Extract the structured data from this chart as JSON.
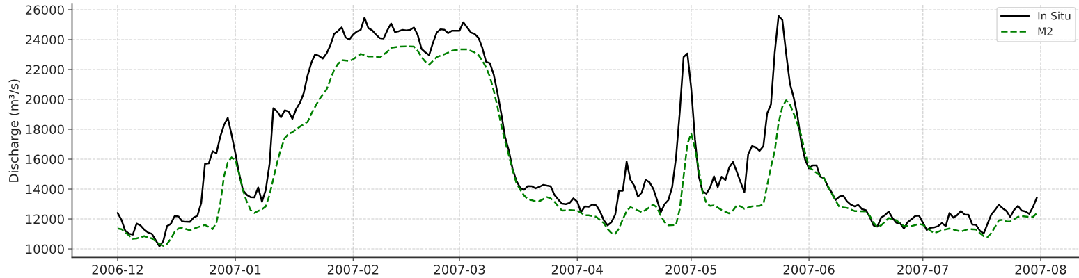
{
  "chart_data": {
    "type": "line",
    "ylabel": "Discharge (m³/s)",
    "xlim": [
      "2006-11-19",
      "2007-08-11"
    ],
    "xticks": [
      {
        "value": "2006-12-01",
        "label": "2006-12"
      },
      {
        "value": "2007-01-01",
        "label": "2007-01"
      },
      {
        "value": "2007-02-01",
        "label": "2007-02"
      },
      {
        "value": "2007-03-01",
        "label": "2007-03"
      },
      {
        "value": "2007-04-01",
        "label": "2007-04"
      },
      {
        "value": "2007-05-01",
        "label": "2007-05"
      },
      {
        "value": "2007-06-01",
        "label": "2007-06"
      },
      {
        "value": "2007-07-01",
        "label": "2007-07"
      },
      {
        "value": "2007-08-01",
        "label": "2007-08"
      }
    ],
    "ylim": [
      9430,
      26370
    ],
    "yticks": [
      10000,
      12000,
      14000,
      16000,
      18000,
      20000,
      22000,
      24000,
      26000
    ],
    "grid": true,
    "legend": "top right",
    "series": [
      {
        "name": "In Situ",
        "color": "#000000",
        "line_style": "solid",
        "x": [
          "2006-12-01",
          "2006-12-02",
          "2006-12-03",
          "2006-12-04",
          "2006-12-05",
          "2006-12-06",
          "2006-12-07",
          "2006-12-08",
          "2006-12-09",
          "2006-12-10",
          "2006-12-11",
          "2006-12-12",
          "2006-12-13",
          "2006-12-14",
          "2006-12-15",
          "2006-12-16",
          "2006-12-17",
          "2006-12-18",
          "2006-12-19",
          "2006-12-20",
          "2006-12-21",
          "2006-12-22",
          "2006-12-23",
          "2006-12-24",
          "2006-12-25",
          "2006-12-26",
          "2006-12-27",
          "2006-12-28",
          "2006-12-29",
          "2006-12-30",
          "2006-12-31",
          "2007-01-01",
          "2007-01-02",
          "2007-01-03",
          "2007-01-04",
          "2007-01-05",
          "2007-01-06",
          "2007-01-07",
          "2007-01-08",
          "2007-01-09",
          "2007-01-10",
          "2007-01-11",
          "2007-01-12",
          "2007-01-13",
          "2007-01-14",
          "2007-01-15",
          "2007-01-16",
          "2007-01-17",
          "2007-01-18",
          "2007-01-19",
          "2007-01-20",
          "2007-01-21",
          "2007-01-22",
          "2007-01-23",
          "2007-01-24",
          "2007-01-25",
          "2007-01-26",
          "2007-01-27",
          "2007-01-28",
          "2007-01-29",
          "2007-01-30",
          "2007-01-31",
          "2007-02-01",
          "2007-02-02",
          "2007-02-03",
          "2007-02-04",
          "2007-02-05",
          "2007-02-06",
          "2007-02-07",
          "2007-02-08",
          "2007-02-09",
          "2007-02-10",
          "2007-02-11",
          "2007-02-12",
          "2007-02-13",
          "2007-02-14",
          "2007-02-15",
          "2007-02-16",
          "2007-02-17",
          "2007-02-18",
          "2007-02-19",
          "2007-02-20",
          "2007-02-21",
          "2007-02-22",
          "2007-02-23",
          "2007-02-24",
          "2007-02-25",
          "2007-02-26",
          "2007-02-27",
          "2007-02-28",
          "2007-03-01",
          "2007-03-02",
          "2007-03-03",
          "2007-03-04",
          "2007-03-05",
          "2007-03-06",
          "2007-03-07",
          "2007-03-08",
          "2007-03-09",
          "2007-03-10",
          "2007-03-11",
          "2007-03-12",
          "2007-03-13",
          "2007-03-14",
          "2007-03-15",
          "2007-03-16",
          "2007-03-17",
          "2007-03-18",
          "2007-03-19",
          "2007-03-20",
          "2007-03-21",
          "2007-03-22",
          "2007-03-23",
          "2007-03-24",
          "2007-03-25",
          "2007-03-26",
          "2007-03-27",
          "2007-03-28",
          "2007-03-29",
          "2007-03-30",
          "2007-03-31",
          "2007-04-01",
          "2007-04-02",
          "2007-04-03",
          "2007-04-04",
          "2007-04-05",
          "2007-04-06",
          "2007-04-07",
          "2007-04-08",
          "2007-04-09",
          "2007-04-10",
          "2007-04-11",
          "2007-04-12",
          "2007-04-13",
          "2007-04-14",
          "2007-04-15",
          "2007-04-16",
          "2007-04-17",
          "2007-04-18",
          "2007-04-19",
          "2007-04-20",
          "2007-04-21",
          "2007-04-22",
          "2007-04-23",
          "2007-04-24",
          "2007-04-25",
          "2007-04-26",
          "2007-04-27",
          "2007-04-28",
          "2007-04-29",
          "2007-04-30",
          "2007-05-01",
          "2007-05-02",
          "2007-05-03",
          "2007-05-04",
          "2007-05-05",
          "2007-05-06",
          "2007-05-07",
          "2007-05-08",
          "2007-05-09",
          "2007-05-10",
          "2007-05-11",
          "2007-05-12",
          "2007-05-13",
          "2007-05-14",
          "2007-05-15",
          "2007-05-16",
          "2007-05-17",
          "2007-05-18",
          "2007-05-19",
          "2007-05-20",
          "2007-05-21",
          "2007-05-22",
          "2007-05-23",
          "2007-05-24",
          "2007-05-25",
          "2007-05-26",
          "2007-05-27",
          "2007-05-28",
          "2007-05-29",
          "2007-05-30",
          "2007-05-31",
          "2007-06-01",
          "2007-06-02",
          "2007-06-03",
          "2007-06-04",
          "2007-06-05",
          "2007-06-06",
          "2007-06-07",
          "2007-06-08",
          "2007-06-09",
          "2007-06-10",
          "2007-06-11",
          "2007-06-12",
          "2007-06-13",
          "2007-06-14",
          "2007-06-15",
          "2007-06-16",
          "2007-06-17",
          "2007-06-18",
          "2007-06-19",
          "2007-06-20",
          "2007-06-21",
          "2007-06-22",
          "2007-06-23",
          "2007-06-24",
          "2007-06-25",
          "2007-06-26",
          "2007-06-27",
          "2007-06-28",
          "2007-06-29",
          "2007-06-30",
          "2007-07-01",
          "2007-07-02",
          "2007-07-03",
          "2007-07-04",
          "2007-07-05",
          "2007-07-06",
          "2007-07-07",
          "2007-07-08",
          "2007-07-09",
          "2007-07-10",
          "2007-07-11",
          "2007-07-12",
          "2007-07-13",
          "2007-07-14",
          "2007-07-15",
          "2007-07-16",
          "2007-07-17",
          "2007-07-18",
          "2007-07-19",
          "2007-07-20",
          "2007-07-21",
          "2007-07-22",
          "2007-07-23",
          "2007-07-24",
          "2007-07-25",
          "2007-07-26",
          "2007-07-27",
          "2007-07-28",
          "2007-07-29",
          "2007-07-30",
          "2007-07-31"
        ],
        "values": [
          12400,
          11940,
          11210,
          11010,
          10950,
          11690,
          11570,
          11290,
          11090,
          11010,
          10590,
          10170,
          10510,
          11520,
          11670,
          12190,
          12170,
          11840,
          11810,
          11800,
          12090,
          12220,
          13070,
          15690,
          15720,
          16530,
          16400,
          17490,
          18290,
          18760,
          17640,
          16400,
          15010,
          13920,
          13610,
          13460,
          13440,
          14110,
          13150,
          13950,
          15700,
          19410,
          19190,
          18800,
          19270,
          19190,
          18700,
          19350,
          19770,
          20430,
          21590,
          22450,
          23020,
          22910,
          22730,
          23070,
          23610,
          24380,
          24570,
          24820,
          24150,
          24000,
          24340,
          24540,
          24650,
          25470,
          24770,
          24620,
          24340,
          24100,
          24070,
          24620,
          25080,
          24510,
          24560,
          24650,
          24620,
          24650,
          24810,
          24310,
          23380,
          23150,
          22960,
          23770,
          24470,
          24690,
          24660,
          24430,
          24590,
          24590,
          24590,
          25160,
          24810,
          24470,
          24380,
          24120,
          23450,
          22520,
          22420,
          21670,
          20430,
          19040,
          17490,
          16560,
          15320,
          14540,
          14080,
          13950,
          14200,
          14190,
          14050,
          14140,
          14280,
          14230,
          14190,
          13610,
          13300,
          13020,
          12990,
          13070,
          13380,
          13150,
          12450,
          12840,
          12810,
          12960,
          12910,
          12500,
          11910,
          11570,
          11780,
          12290,
          13890,
          13890,
          15840,
          14620,
          14230,
          13490,
          13770,
          14620,
          14460,
          14030,
          13270,
          12450,
          12990,
          13270,
          14150,
          16090,
          19190,
          22830,
          23070,
          20740,
          17330,
          14850,
          13840,
          13690,
          14110,
          14850,
          14140,
          14820,
          14600,
          15440,
          15810,
          15160,
          14460,
          13800,
          16330,
          16870,
          16790,
          16560,
          16870,
          19070,
          19660,
          23140,
          25590,
          25310,
          23070,
          21050,
          20120,
          18880,
          17100,
          15970,
          15390,
          15580,
          15580,
          14820,
          14730,
          14150,
          13770,
          13270,
          13490,
          13570,
          13180,
          12960,
          12840,
          12930,
          12650,
          12590,
          12140,
          11570,
          11490,
          12090,
          12250,
          12500,
          12060,
          11750,
          11710,
          11360,
          11780,
          11980,
          12200,
          12220,
          11750,
          11260,
          11410,
          11440,
          11520,
          11720,
          11520,
          12400,
          12090,
          12250,
          12530,
          12290,
          12280,
          11630,
          11600,
          11210,
          11020,
          11670,
          12290,
          12600,
          12950,
          12710,
          12530,
          12140,
          12600,
          12870,
          12560,
          12500,
          12340,
          12810,
          13430
        ]
      },
      {
        "name": "M2",
        "color": "#008000",
        "line_style": "dashed",
        "x": [
          "2006-12-01",
          "2006-12-02",
          "2006-12-04",
          "2006-12-05",
          "2006-12-06",
          "2006-12-08",
          "2006-12-10",
          "2006-12-12",
          "2006-12-13",
          "2006-12-14",
          "2006-12-15",
          "2006-12-16",
          "2006-12-17",
          "2006-12-18",
          "2006-12-20",
          "2006-12-22",
          "2006-12-24",
          "2006-12-26",
          "2006-12-27",
          "2006-12-28",
          "2006-12-29",
          "2006-12-30",
          "2006-12-31",
          "2007-01-01",
          "2007-01-02",
          "2007-01-03",
          "2007-01-04",
          "2007-01-05",
          "2007-01-06",
          "2007-01-07",
          "2007-01-08",
          "2007-01-09",
          "2007-01-10",
          "2007-01-11",
          "2007-01-12",
          "2007-01-13",
          "2007-01-14",
          "2007-01-15",
          "2007-01-16",
          "2007-01-18",
          "2007-01-20",
          "2007-01-21",
          "2007-01-23",
          "2007-01-25",
          "2007-01-27",
          "2007-01-28",
          "2007-01-29",
          "2007-01-31",
          "2007-02-01",
          "2007-02-03",
          "2007-02-05",
          "2007-02-07",
          "2007-02-08",
          "2007-02-10",
          "2007-02-11",
          "2007-02-13",
          "2007-02-15",
          "2007-02-17",
          "2007-02-18",
          "2007-02-19",
          "2007-02-20",
          "2007-02-21",
          "2007-02-22",
          "2007-02-23",
          "2007-02-25",
          "2007-02-27",
          "2007-03-01",
          "2007-03-03",
          "2007-03-05",
          "2007-03-06",
          "2007-03-07",
          "2007-03-08",
          "2007-03-09",
          "2007-03-10",
          "2007-03-11",
          "2007-03-12",
          "2007-03-13",
          "2007-03-14",
          "2007-03-15",
          "2007-03-16",
          "2007-03-17",
          "2007-03-18",
          "2007-03-19",
          "2007-03-21",
          "2007-03-22",
          "2007-03-24",
          "2007-03-25",
          "2007-03-26",
          "2007-03-27",
          "2007-03-28",
          "2007-03-30",
          "2007-04-01",
          "2007-04-03",
          "2007-04-04",
          "2007-04-06",
          "2007-04-08",
          "2007-04-09",
          "2007-04-10",
          "2007-04-11",
          "2007-04-12",
          "2007-04-13",
          "2007-04-14",
          "2007-04-15",
          "2007-04-16",
          "2007-04-18",
          "2007-04-19",
          "2007-04-21",
          "2007-04-22",
          "2007-04-23",
          "2007-04-24",
          "2007-04-25",
          "2007-04-27",
          "2007-04-28",
          "2007-04-29",
          "2007-04-30",
          "2007-05-01",
          "2007-05-02",
          "2007-05-03",
          "2007-05-04",
          "2007-05-05",
          "2007-05-06",
          "2007-05-07",
          "2007-05-09",
          "2007-05-11",
          "2007-05-12",
          "2007-05-13",
          "2007-05-14",
          "2007-05-15",
          "2007-05-17",
          "2007-05-19",
          "2007-05-20",
          "2007-05-21",
          "2007-05-22",
          "2007-05-23",
          "2007-05-24",
          "2007-05-25",
          "2007-05-26",
          "2007-05-27",
          "2007-05-28",
          "2007-05-29",
          "2007-05-30",
          "2007-05-31",
          "2007-06-01",
          "2007-06-03",
          "2007-06-05",
          "2007-06-07",
          "2007-06-09",
          "2007-06-11",
          "2007-06-13",
          "2007-06-16",
          "2007-06-17",
          "2007-06-18",
          "2007-06-19",
          "2007-06-20",
          "2007-06-22",
          "2007-06-24",
          "2007-06-26",
          "2007-06-28",
          "2007-06-30",
          "2007-07-01",
          "2007-07-03",
          "2007-07-04",
          "2007-07-06",
          "2007-07-08",
          "2007-07-11",
          "2007-07-13",
          "2007-07-15",
          "2007-07-16",
          "2007-07-17",
          "2007-07-18",
          "2007-07-19",
          "2007-07-20",
          "2007-07-21",
          "2007-07-22",
          "2007-07-23",
          "2007-07-24",
          "2007-07-25",
          "2007-07-26",
          "2007-07-27",
          "2007-07-29",
          "2007-07-30",
          "2007-07-31"
        ],
        "values": [
          11360,
          11320,
          10900,
          10670,
          10700,
          10850,
          10700,
          10330,
          10200,
          10330,
          10670,
          11130,
          11360,
          11410,
          11240,
          11440,
          11600,
          11320,
          11750,
          12990,
          14850,
          15780,
          16120,
          15940,
          15010,
          13920,
          13150,
          12600,
          12400,
          12530,
          12640,
          12840,
          13610,
          14700,
          15780,
          16710,
          17410,
          17690,
          17800,
          18180,
          18490,
          19040,
          19970,
          20660,
          21980,
          22370,
          22630,
          22570,
          22680,
          23040,
          22870,
          22870,
          22800,
          23190,
          23450,
          23530,
          23550,
          23530,
          23250,
          22830,
          22520,
          22320,
          22570,
          22830,
          23020,
          23250,
          23350,
          23350,
          23140,
          22960,
          22600,
          22140,
          21520,
          20590,
          19500,
          18260,
          17180,
          16250,
          15240,
          14390,
          13950,
          13570,
          13330,
          13180,
          13180,
          13460,
          13380,
          13150,
          12840,
          12560,
          12590,
          12560,
          12250,
          12250,
          12140,
          11720,
          11320,
          11050,
          11010,
          11360,
          11980,
          12530,
          12790,
          12680,
          12450,
          12600,
          12960,
          12760,
          12220,
          11780,
          11570,
          11600,
          12680,
          14850,
          17020,
          17720,
          16710,
          15320,
          13770,
          13070,
          12870,
          12910,
          12600,
          12370,
          12560,
          12910,
          12840,
          12680,
          12840,
          12870,
          12990,
          14230,
          15470,
          16560,
          18420,
          19500,
          19940,
          19660,
          19040,
          18340,
          17560,
          16400,
          15470,
          15080,
          14700,
          13690,
          12810,
          12740,
          12530,
          12500,
          12220,
          11750,
          11470,
          11570,
          12060,
          11910,
          11520,
          11520,
          11670,
          11600,
          11210,
          11050,
          11240,
          11360,
          11160,
          11320,
          11290,
          11050,
          10850,
          10790,
          11050,
          11470,
          11910,
          11940,
          11830,
          11830,
          11980,
          12140,
          12190,
          12140,
          12140,
          12400
        ]
      }
    ]
  }
}
